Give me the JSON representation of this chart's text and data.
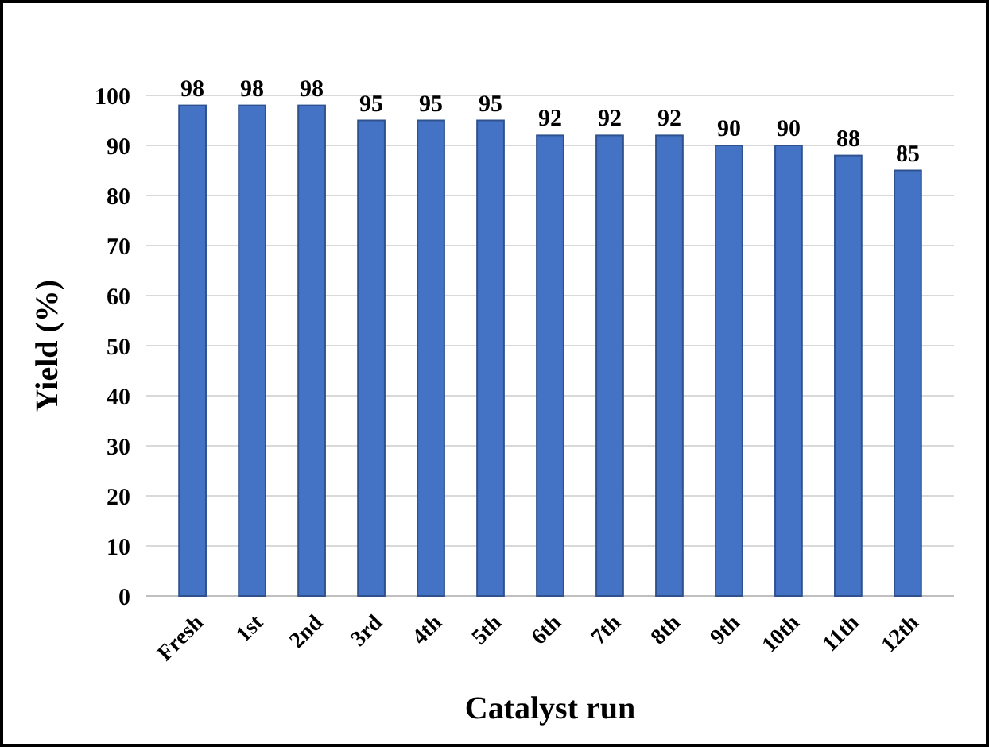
{
  "chart_data": {
    "type": "bar",
    "xlabel": "Catalyst run",
    "ylabel": "Yield (%)",
    "categories": [
      "Fresh",
      "1st",
      "2nd",
      "3rd",
      "4th",
      "5th",
      "6th",
      "7th",
      "8th",
      "9th",
      "10th",
      "11th",
      "12th"
    ],
    "values": [
      98,
      98,
      98,
      95,
      95,
      95,
      92,
      92,
      92,
      90,
      90,
      88,
      85
    ],
    "color": "#4472c4",
    "ylim": [
      0,
      100
    ],
    "yticks": [
      0,
      10,
      20,
      30,
      40,
      50,
      60,
      70,
      80,
      90,
      100
    ],
    "grid": "y",
    "data_labels": true
  }
}
